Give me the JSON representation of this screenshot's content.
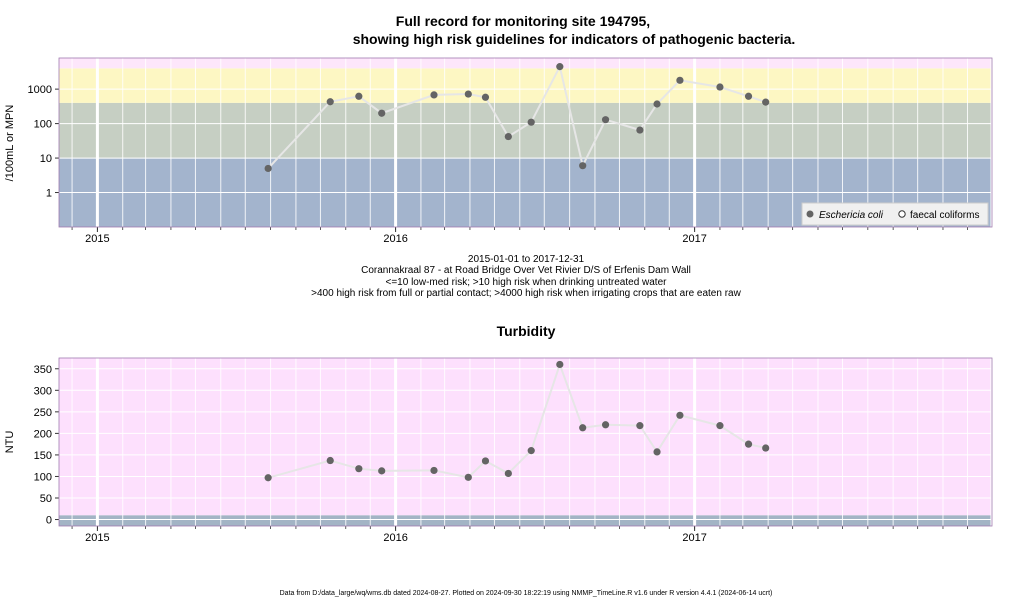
{
  "title_line1": "Full record for monitoring site 194795,",
  "title_line2": "showing high risk guidelines for indicators of pathogenic bacteria.",
  "info_lines": [
    "2015-01-01 to 2017-12-31",
    "Corannakraal 87 - at Road Bridge Over Vet Rivier D/S of Erfenis Dam Wall",
    "<=10 low-med risk; >10 high risk when drinking untreated water",
    ">400 high risk from full or partial contact; >4000 high risk when irrigating crops that are eaten raw"
  ],
  "footer": "Data from D:/data_large/wq/wms.db dated 2024-08-27. Plotted on 2024-09-30 18:22:19 using NMMP_TimeLine.R v1.6 under R version 4.4.1 (2024-06-14 ucrt)",
  "colors": {
    "band_low": "#a3b4cd",
    "band_mid": "#c6cfc3",
    "band_high": "#fdf7c3",
    "band_top": "#fde6fb",
    "turb_bg": "#fde0fd",
    "turb_low": "#a3b4c5",
    "point": "#646464",
    "line": "#e6e6e6"
  },
  "chart_data": [
    {
      "type": "scatter",
      "ylabel": "/100mL or MPN",
      "xlabel": "",
      "y_scale": "log10",
      "ylim": [
        0.1,
        8000
      ],
      "xlim": [
        "2014-11-15",
        "2017-12-31"
      ],
      "x_tick_labels": [
        "2015",
        "2016",
        "2017"
      ],
      "x_ticks": [
        "2015-01-01",
        "2016-01-01",
        "2017-01-01"
      ],
      "y_tick_labels": [
        "1",
        "10",
        "100",
        "1000"
      ],
      "y_ticks": [
        1,
        10,
        100,
        1000
      ],
      "guideline_bands": [
        10,
        400,
        4000
      ],
      "legend_position": "bottom-right",
      "legend": [
        "Eschericia coli",
        "faecal coliforms"
      ],
      "series": [
        {
          "name": "Eschericia coli",
          "points": [
            {
              "x": "2015-07-29",
              "y": 5
            },
            {
              "x": "2015-10-13",
              "y": 430
            },
            {
              "x": "2015-11-17",
              "y": 620
            },
            {
              "x": "2015-12-15",
              "y": 200
            },
            {
              "x": "2016-02-17",
              "y": 680
            },
            {
              "x": "2016-03-30",
              "y": 720
            },
            {
              "x": "2016-04-20",
              "y": 580
            },
            {
              "x": "2016-05-18",
              "y": 42
            },
            {
              "x": "2016-06-15",
              "y": 110
            },
            {
              "x": "2016-07-20",
              "y": 4500
            },
            {
              "x": "2016-08-17",
              "y": 6
            },
            {
              "x": "2016-09-14",
              "y": 130
            },
            {
              "x": "2016-10-26",
              "y": 65
            },
            {
              "x": "2016-11-16",
              "y": 370
            },
            {
              "x": "2016-12-14",
              "y": 1800
            },
            {
              "x": "2017-02-01",
              "y": 1150
            },
            {
              "x": "2017-03-08",
              "y": 620
            },
            {
              "x": "2017-03-29",
              "y": 420
            }
          ]
        }
      ]
    },
    {
      "type": "line",
      "title": "Turbidity",
      "ylabel": "NTU",
      "xlabel": "",
      "ylim": [
        -15,
        375
      ],
      "xlim": [
        "2014-11-15",
        "2017-12-31"
      ],
      "x_tick_labels": [
        "2015",
        "2016",
        "2017"
      ],
      "x_ticks": [
        "2015-01-01",
        "2016-01-01",
        "2017-01-01"
      ],
      "y_tick_labels": [
        "0",
        "50",
        "100",
        "150",
        "200",
        "250",
        "300",
        "350"
      ],
      "y_ticks": [
        0,
        50,
        100,
        150,
        200,
        250,
        300,
        350
      ],
      "guideline_bands": [
        10
      ],
      "series": [
        {
          "name": "",
          "points": [
            {
              "x": "2015-07-29",
              "y": 97
            },
            {
              "x": "2015-10-13",
              "y": 137
            },
            {
              "x": "2015-11-17",
              "y": 118
            },
            {
              "x": "2015-12-15",
              "y": 113
            },
            {
              "x": "2016-02-17",
              "y": 114
            },
            {
              "x": "2016-03-30",
              "y": 98
            },
            {
              "x": "2016-04-20",
              "y": 136
            },
            {
              "x": "2016-05-18",
              "y": 107
            },
            {
              "x": "2016-06-15",
              "y": 160
            },
            {
              "x": "2016-07-20",
              "y": 360
            },
            {
              "x": "2016-08-17",
              "y": 213
            },
            {
              "x": "2016-09-14",
              "y": 220
            },
            {
              "x": "2016-10-26",
              "y": 218
            },
            {
              "x": "2016-11-16",
              "y": 157
            },
            {
              "x": "2016-12-14",
              "y": 242
            },
            {
              "x": "2017-02-01",
              "y": 218
            },
            {
              "x": "2017-03-08",
              "y": 175
            },
            {
              "x": "2017-03-29",
              "y": 166
            }
          ]
        }
      ]
    }
  ]
}
